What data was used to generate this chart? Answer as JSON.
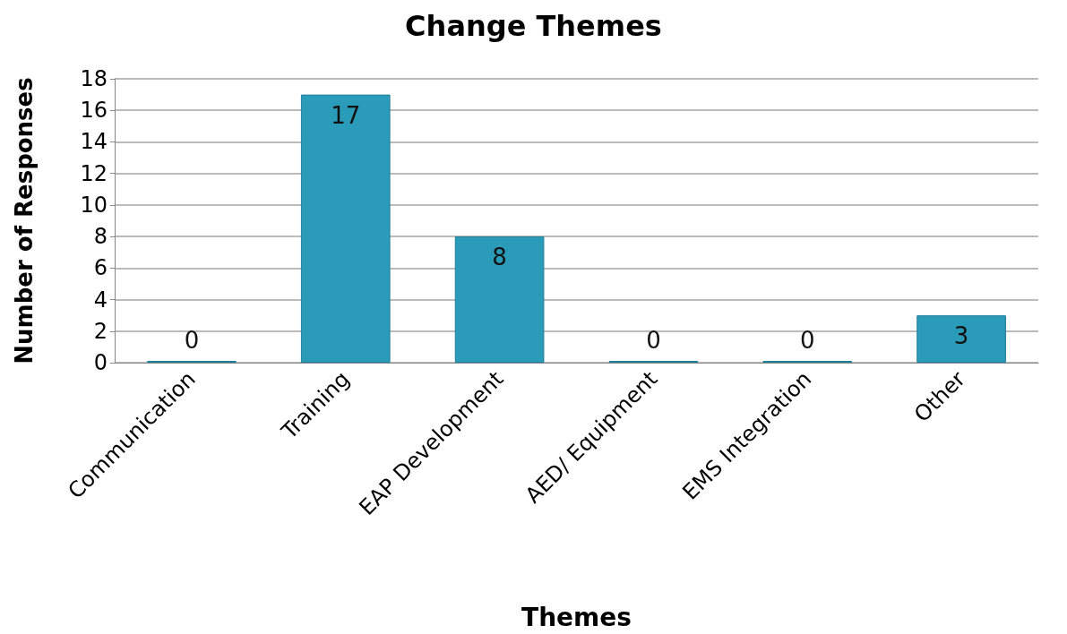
{
  "chart_data": {
    "type": "bar",
    "title": "Change Themes",
    "xlabel": "Themes",
    "ylabel": "Number of Responses",
    "categories": [
      "Communication",
      "Training",
      "EAP Development",
      "AED/ Equipment",
      "EMS Integration",
      "Other"
    ],
    "values": [
      0,
      17,
      8,
      0,
      0,
      3
    ],
    "color": "#2a9bb9",
    "ylim": [
      0,
      18
    ],
    "yticks": [
      0,
      2,
      4,
      6,
      8,
      10,
      12,
      14,
      16,
      18
    ],
    "grid": "y",
    "data_labels": true
  }
}
